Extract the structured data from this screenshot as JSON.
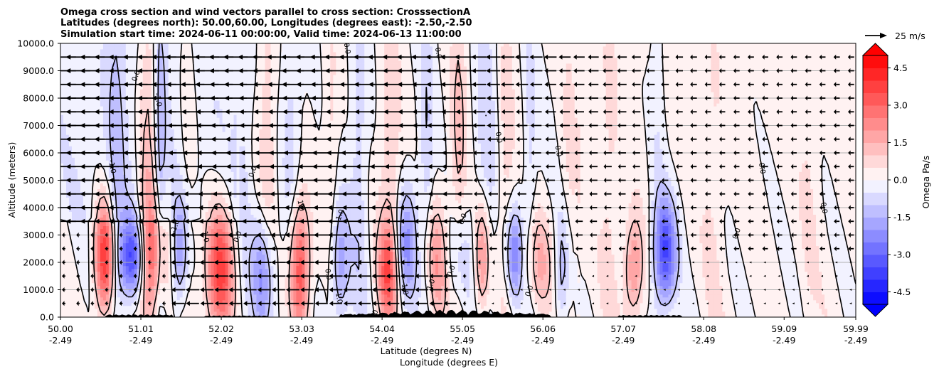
{
  "chart_data": {
    "type": "contour",
    "title_lines": [
      "Omega cross section and wind vectors parallel to cross section: CrosssectionA",
      "Latitudes (degrees north): 50.00,60.00, Longitudes (degrees east): -2.50,-2.50",
      "Simulation start time: 2024-06-11 00:00:00, Valid time: 2024-06-13 11:00:00"
    ],
    "ylabel": "Altitude (meters)",
    "xlabel_lines": [
      "Latitude (degrees N)",
      "Longitude (degrees E)"
    ],
    "y_ticks": [
      "0.0",
      "1000.0",
      "2000.0",
      "3000.0",
      "4000.0",
      "5000.0",
      "6000.0",
      "7000.0",
      "8000.0",
      "9000.0",
      "10000.0"
    ],
    "y_range": [
      0,
      10000
    ],
    "x_range": [
      50.0,
      59.99
    ],
    "x_tick_lat": [
      "50.00",
      "51.01",
      "52.02",
      "53.03",
      "54.04",
      "55.05",
      "56.06",
      "57.07",
      "58.08",
      "59.09",
      "59.99"
    ],
    "x_tick_lon": [
      "-2.49",
      "-2.49",
      "-2.49",
      "-2.49",
      "-2.49",
      "-2.49",
      "-2.49",
      "-2.49",
      "-2.49",
      "-2.49",
      "-2.49"
    ],
    "x_tick_values": [
      50.0,
      51.01,
      52.02,
      53.03,
      54.04,
      55.05,
      56.06,
      57.07,
      58.08,
      59.09,
      59.99
    ],
    "grid": "horizontal",
    "colorbar": {
      "label": "Omega Pa/s",
      "ticks": [
        "-4.5",
        "-3.0",
        "-1.5",
        "0.0",
        "1.5",
        "3.0",
        "4.5"
      ],
      "tick_values": [
        -4.5,
        -3.0,
        -1.5,
        0.0,
        1.5,
        3.0,
        4.5
      ],
      "range": [
        -5.0,
        5.0
      ],
      "negative_color": "#0000ff",
      "positive_color": "#ff0000",
      "extend": "both"
    },
    "contour_levels": [
      -1.0,
      0.0,
      1.0
    ],
    "contour_label_texts": [
      "0.0",
      "1.0",
      "-1.0"
    ],
    "quiver_key": {
      "label": "25 m/s",
      "speed": 25
    },
    "wind_summary": "westward (leftward) vectors, strongest aloft and north of 51.3 N"
  }
}
